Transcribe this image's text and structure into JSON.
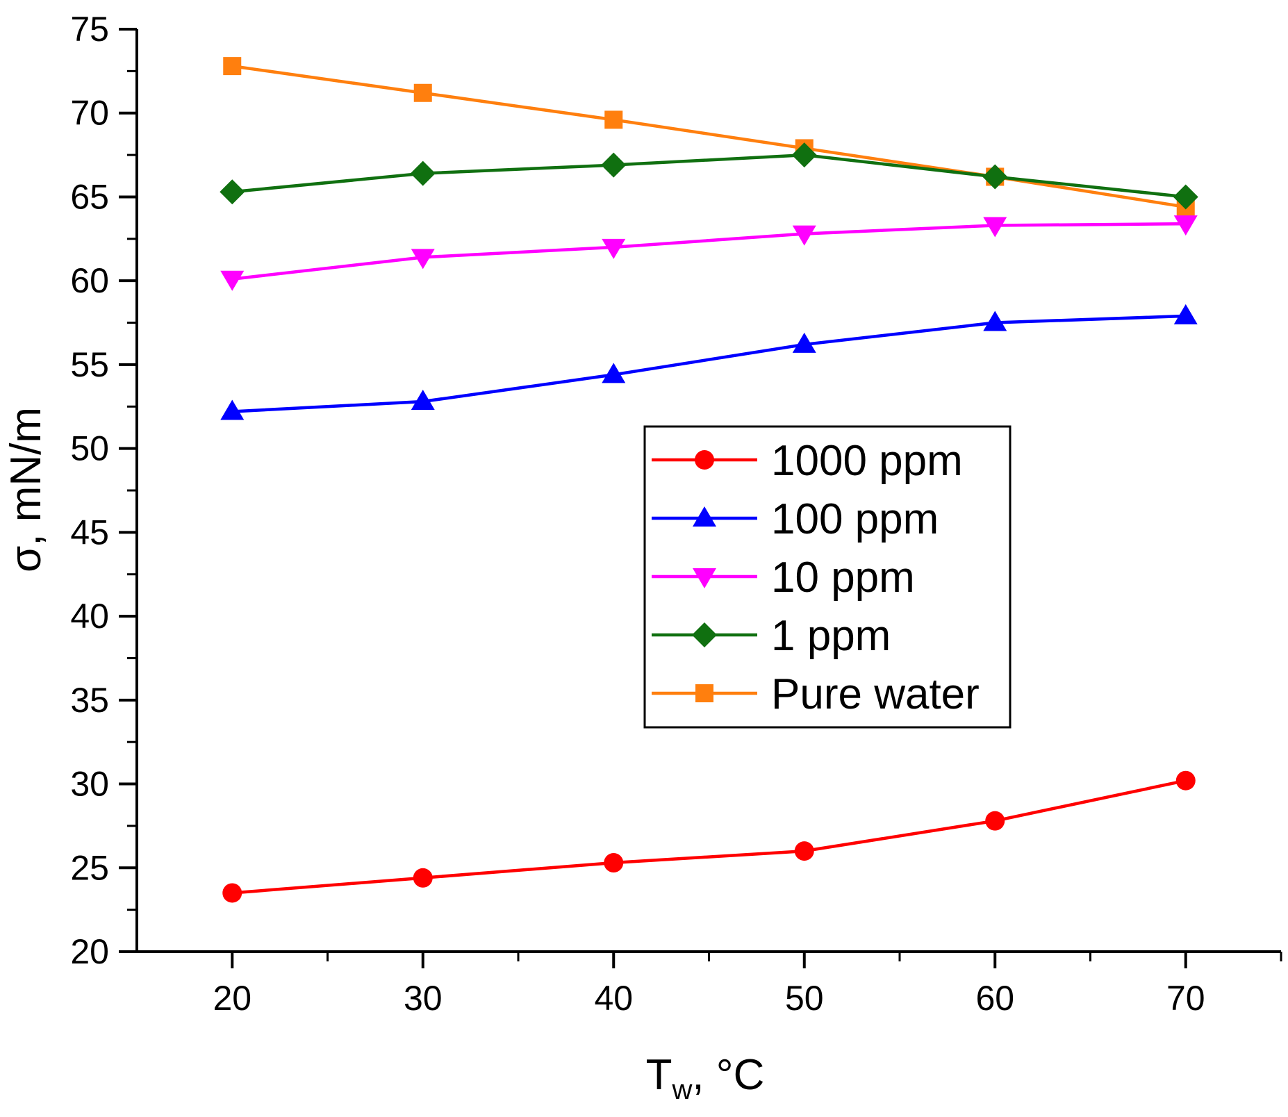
{
  "chart_data": {
    "type": "line",
    "title": "",
    "xlabel": "T",
    "xlabel_sub": "w",
    "xlabel_unit": ", °C",
    "ylabel": "σ, mN/m",
    "xlim": [
      15,
      75
    ],
    "ylim": [
      20,
      75
    ],
    "xticks": [
      20,
      30,
      40,
      50,
      60,
      70
    ],
    "yticks": [
      20,
      25,
      30,
      35,
      40,
      45,
      50,
      55,
      60,
      65,
      70,
      75
    ],
    "x": [
      20,
      30,
      40,
      50,
      60,
      70
    ],
    "legend_position": "center-right",
    "series": [
      {
        "name": "1000 ppm",
        "color": "#ff0000",
        "marker": "circle",
        "values": [
          23.5,
          24.4,
          25.3,
          26.0,
          27.8,
          30.2
        ]
      },
      {
        "name": "100 ppm",
        "color": "#0000ff",
        "marker": "triangle-up",
        "values": [
          52.2,
          52.8,
          54.4,
          56.2,
          57.5,
          57.9
        ]
      },
      {
        "name": "10 ppm",
        "color": "#ff00ff",
        "marker": "triangle-down",
        "values": [
          60.1,
          61.4,
          62.0,
          62.8,
          63.3,
          63.4
        ]
      },
      {
        "name": "1 ppm",
        "color": "#107010",
        "marker": "diamond",
        "values": [
          65.3,
          66.4,
          66.9,
          67.5,
          66.2,
          65.0
        ]
      },
      {
        "name": "Pure water",
        "color": "#ff7f0e",
        "marker": "square",
        "values": [
          72.8,
          71.2,
          69.6,
          67.9,
          66.2,
          64.4
        ]
      }
    ]
  }
}
